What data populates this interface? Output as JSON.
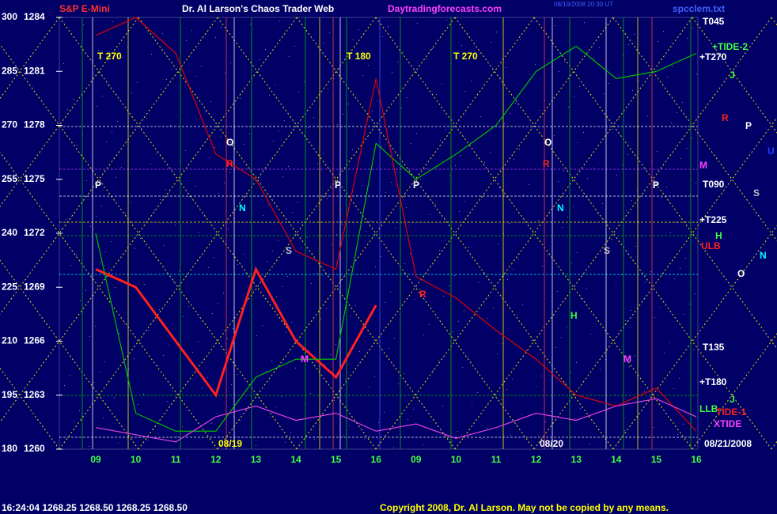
{
  "chart_data": {
    "type": "line",
    "instrument": "S&P E-Mini",
    "title": "Dr. Al Larson's Chaos Trader Web",
    "website": "Daytradingforecasts.com",
    "timestamp": "08/19/2008 20:30 UT",
    "file": "spcclem.txt",
    "categories": [
      "09",
      "10",
      "11",
      "12",
      "13",
      "14",
      "15",
      "16",
      "09",
      "10",
      "11",
      "12",
      "13",
      "14",
      "15",
      "16"
    ],
    "ylim": [
      180,
      300
    ],
    "yticks": [
      180,
      195,
      210,
      225,
      240,
      255,
      270,
      285,
      300
    ],
    "y2lim": [
      1260,
      1284
    ],
    "y2ticks": [
      1260,
      1263,
      1266,
      1269,
      1272,
      1275,
      1278,
      1281,
      1284
    ],
    "series": [
      {
        "name": "Price",
        "color": "#ff2020",
        "axis": "y2",
        "values": [
          1270,
          1269,
          1266,
          1263,
          1270,
          1266,
          1264,
          1268,
          null,
          null,
          null,
          null,
          null,
          null,
          null,
          null
        ]
      },
      {
        "name": "Flux A",
        "color": "#00c000",
        "values": [
          240,
          190,
          185,
          185,
          200,
          205,
          205,
          265,
          255,
          262,
          270,
          285,
          292,
          283,
          285,
          290
        ]
      },
      {
        "name": "Flux B",
        "color": "#e00000",
        "values": [
          295,
          300,
          290,
          262,
          255,
          235,
          230,
          283,
          228,
          222,
          213,
          205,
          195,
          192,
          197,
          185
        ]
      },
      {
        "name": "Tide",
        "color": "#e040e0",
        "values": [
          186,
          184,
          182,
          189,
          192,
          188,
          190,
          185,
          187,
          183,
          186,
          190,
          188,
          192,
          194,
          189
        ]
      }
    ],
    "annotations": [
      "T 270",
      "T 180",
      "T 270",
      "T045",
      "+TIDE-2",
      "+T270",
      "J",
      "R",
      "P",
      "U",
      "M",
      "T090",
      "S",
      "+T225",
      "H",
      "ULB",
      "N",
      "O",
      "T135",
      "+T180",
      "J",
      "LLB",
      "TIDE-1",
      "XTIDE",
      "08/19",
      "08/20",
      "08/21/2008",
      "O",
      "P",
      "N",
      "S",
      "P",
      "P",
      "O",
      "N",
      "S",
      "P",
      "R",
      "R",
      "H",
      "M",
      "M",
      "R"
    ],
    "status": "16:24:04  1268.25 1268.50 1268.25 1268.50",
    "copyright": "Copyright 2008, Dr. Al Larson. May not be copied by any means."
  }
}
